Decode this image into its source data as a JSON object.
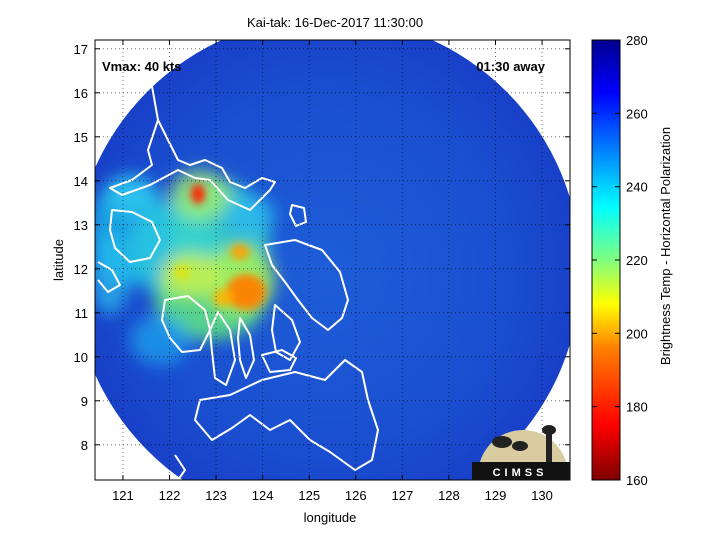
{
  "chart_data": {
    "type": "heatmap",
    "title": "Kai-tak: 16-Dec-2017 11:30:00",
    "xlabel": "longitude",
    "ylabel": "latitude",
    "xlim": [
      120.4,
      130.6
    ],
    "ylim": [
      7.2,
      17.2
    ],
    "xticks": [
      121,
      122,
      123,
      124,
      125,
      126,
      127,
      128,
      129,
      130
    ],
    "yticks": [
      8,
      9,
      10,
      11,
      12,
      13,
      14,
      15,
      16,
      17
    ],
    "grid": true,
    "colorbar": {
      "label": "Brightness Temp - Horizontal Polarization",
      "min": 160,
      "max": 280,
      "ticks": [
        160,
        180,
        200,
        220,
        240,
        260,
        280
      ],
      "colormap": [
        "#7f0000",
        "#ff0000",
        "#ff8000",
        "#ffff00",
        "#80ff80",
        "#00ffff",
        "#0080ff",
        "#0000ff",
        "#00008f"
      ]
    },
    "swath": {
      "center_lon": 125.38,
      "center_lat": 11.95,
      "radius_deg": 5.45
    },
    "annotations": {
      "vmax": "Vmax: 40 kts",
      "time_offset": "01:30 away"
    },
    "cold_cores": [
      {
        "lon": 122.7,
        "lat": 13.65,
        "tb": 175
      },
      {
        "lon": 123.6,
        "lat": 11.5,
        "tb": 195
      },
      {
        "lon": 123.3,
        "lat": 12.3,
        "tb": 205
      },
      {
        "lon": 122.3,
        "lat": 11.6,
        "tb": 215
      }
    ]
  },
  "logo": {
    "text": "CIMSS"
  }
}
